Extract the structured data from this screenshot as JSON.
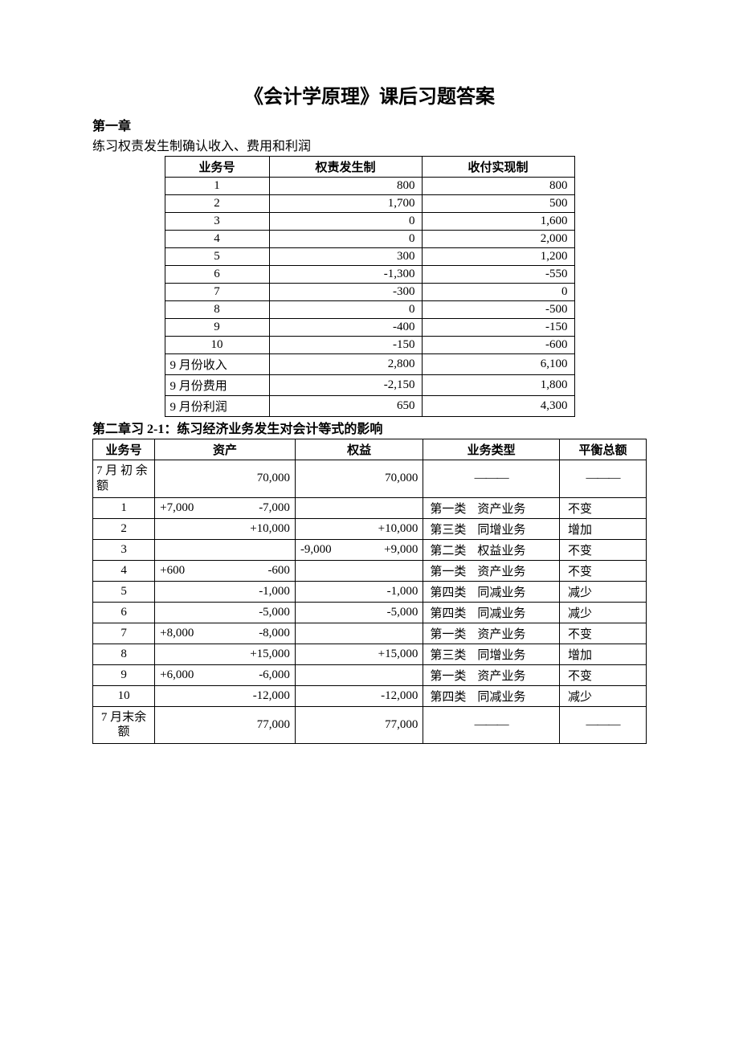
{
  "title": "《会计学原理》课后习题答案",
  "chapter1": {
    "heading": "第一章",
    "subheading": "练习权责发生制确认收入、费用和利润",
    "table": {
      "headers": {
        "id": "业务号",
        "accrual": "权责发生制",
        "cash": "收付实现制"
      },
      "rows": [
        {
          "id": "1",
          "accrual": "800",
          "cash": "800"
        },
        {
          "id": "2",
          "accrual": "1,700",
          "cash": "500"
        },
        {
          "id": "3",
          "accrual": "0",
          "cash": "1,600"
        },
        {
          "id": "4",
          "accrual": "0",
          "cash": "2,000"
        },
        {
          "id": "5",
          "accrual": "300",
          "cash": "1,200"
        },
        {
          "id": "6",
          "accrual": "-1,300",
          "cash": "-550"
        },
        {
          "id": "7",
          "accrual": "-300",
          "cash": "0"
        },
        {
          "id": "8",
          "accrual": "0",
          "cash": "-500"
        },
        {
          "id": "9",
          "accrual": "-400",
          "cash": "-150"
        },
        {
          "id": "10",
          "accrual": "-150",
          "cash": "-600"
        }
      ],
      "summary": [
        {
          "label": "9 月份收入",
          "accrual": "2,800",
          "cash": "6,100"
        },
        {
          "label": "9 月份费用",
          "accrual": "-2,150",
          "cash": "1,800"
        },
        {
          "label": "9 月份利润",
          "accrual": "650",
          "cash": "4,300"
        }
      ]
    }
  },
  "chapter2": {
    "heading": "第二章习 2-1：练习经济业务发生对会计等式的影响",
    "table": {
      "headers": {
        "id": "业务号",
        "asset": "资产",
        "equity": "权益",
        "type": "业务类型",
        "balance": "平衡总额"
      },
      "beginRow": {
        "label": "7 月 初 余额",
        "asset": "70,000",
        "equity": "70,000",
        "dash": "———"
      },
      "rows": [
        {
          "id": "1",
          "asset_left": "+7,000",
          "asset_right": "-7,000",
          "equity_left": "",
          "equity_right": "",
          "type_cat": "第一类",
          "type_name": "资产业务",
          "balance": "不变"
        },
        {
          "id": "2",
          "asset_left": "",
          "asset_right": "+10,000",
          "equity_left": "",
          "equity_right": "+10,000",
          "type_cat": "第三类",
          "type_name": "同增业务",
          "balance": "增加"
        },
        {
          "id": "3",
          "asset_left": "",
          "asset_right": "",
          "equity_left": "-9,000",
          "equity_right": "+9,000",
          "type_cat": "第二类",
          "type_name": "权益业务",
          "balance": "不变"
        },
        {
          "id": "4",
          "asset_left": "+600",
          "asset_right": "-600",
          "equity_left": "",
          "equity_right": "",
          "type_cat": "第一类",
          "type_name": "资产业务",
          "balance": "不变"
        },
        {
          "id": "5",
          "asset_left": "",
          "asset_right": "-1,000",
          "equity_left": "",
          "equity_right": "-1,000",
          "type_cat": "第四类",
          "type_name": "同减业务",
          "balance": "减少"
        },
        {
          "id": "6",
          "asset_left": "",
          "asset_right": "-5,000",
          "equity_left": "",
          "equity_right": "-5,000",
          "type_cat": "第四类",
          "type_name": "同减业务",
          "balance": "减少"
        },
        {
          "id": "7",
          "asset_left": "+8,000",
          "asset_right": "-8,000",
          "equity_left": "",
          "equity_right": "",
          "type_cat": "第一类",
          "type_name": "资产业务",
          "balance": "不变"
        },
        {
          "id": "8",
          "asset_left": "",
          "asset_right": "+15,000",
          "equity_left": "",
          "equity_right": "+15,000",
          "type_cat": "第三类",
          "type_name": "同增业务",
          "balance": "增加"
        },
        {
          "id": "9",
          "asset_left": "+6,000",
          "asset_right": "-6,000",
          "equity_left": "",
          "equity_right": "",
          "type_cat": "第一类",
          "type_name": "资产业务",
          "balance": "不变"
        },
        {
          "id": "10",
          "asset_left": "",
          "asset_right": "-12,000",
          "equity_left": "",
          "equity_right": "-12,000",
          "type_cat": "第四类",
          "type_name": "同减业务",
          "balance": "减少"
        }
      ],
      "endRow": {
        "label": "7 月末余额",
        "asset": "77,000",
        "equity": "77,000",
        "dash": "———"
      }
    }
  }
}
